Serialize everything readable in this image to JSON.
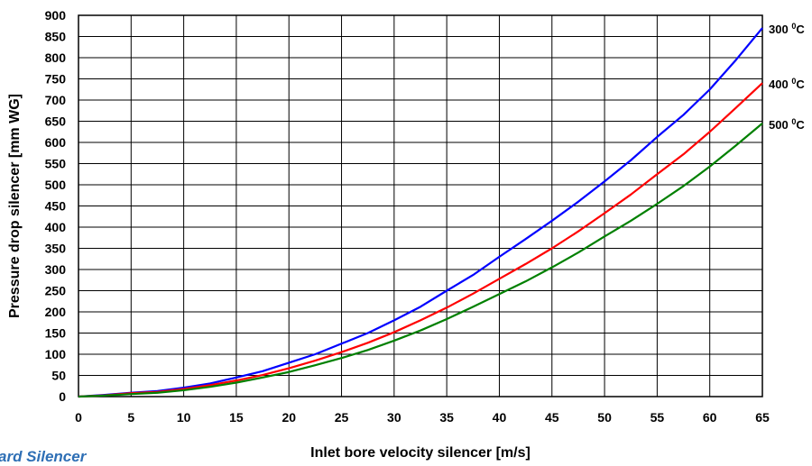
{
  "corner_text": "ard Silencer",
  "chart_data": {
    "type": "line",
    "title": "",
    "xlabel": "Inlet bore velocity silencer  [m/s]",
    "ylabel": "Pressure drop silencer [mm WG]",
    "xlim": [
      0,
      65
    ],
    "ylim": [
      0,
      900
    ],
    "x_ticks": [
      0,
      5,
      10,
      15,
      20,
      25,
      30,
      35,
      40,
      45,
      50,
      55,
      60,
      65
    ],
    "y_ticks": [
      0,
      50,
      100,
      150,
      200,
      250,
      300,
      350,
      400,
      450,
      500,
      550,
      600,
      650,
      700,
      750,
      800,
      850,
      900
    ],
    "grid": true,
    "legend": "inline labels at right end of each line",
    "x": [
      0,
      2.5,
      5,
      7.5,
      10,
      12.5,
      15,
      17.5,
      20,
      22.5,
      25,
      27.5,
      30,
      32.5,
      35,
      37.5,
      40,
      42.5,
      45,
      47.5,
      50,
      52.5,
      55,
      57.5,
      60,
      62.5,
      65
    ],
    "series": [
      {
        "name": "300",
        "label_unit": "C",
        "label_sup": "0",
        "color": "#0000ff",
        "values": [
          0,
          4,
          9,
          13,
          21,
          31,
          45,
          60,
          80,
          100,
          125,
          150,
          180,
          212,
          250,
          287,
          330,
          372,
          415,
          460,
          508,
          558,
          613,
          665,
          725,
          795,
          870
        ]
      },
      {
        "name": "400",
        "label_unit": "C",
        "label_sup": "0",
        "color": "#ff0000",
        "values": [
          0,
          3,
          8,
          11,
          18,
          27,
          38,
          51,
          67,
          85,
          105,
          127,
          152,
          180,
          210,
          243,
          278,
          313,
          350,
          390,
          433,
          477,
          525,
          572,
          625,
          682,
          740
        ]
      },
      {
        "name": "500",
        "label_unit": "C",
        "label_sup": "0",
        "color": "#008000",
        "values": [
          0,
          2.5,
          6,
          9,
          15,
          23,
          33,
          45,
          58,
          74,
          91,
          110,
          132,
          156,
          183,
          212,
          242,
          272,
          305,
          340,
          378,
          415,
          455,
          497,
          543,
          593,
          645
        ]
      }
    ]
  }
}
